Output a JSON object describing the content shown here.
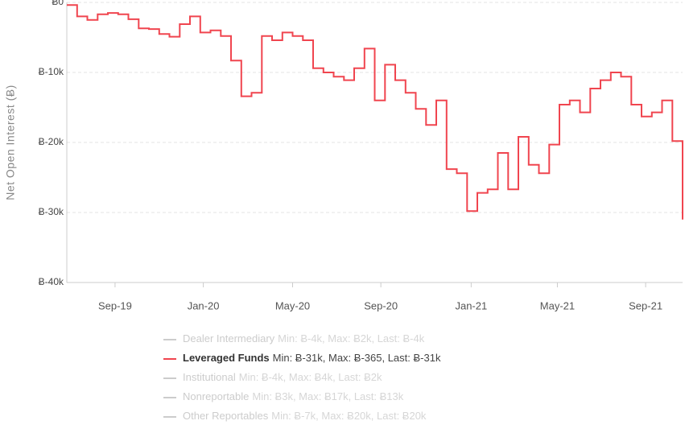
{
  "chart_data": {
    "type": "step-line",
    "y_axis_label": "Net Open Interest (Ƀ)",
    "ylim": [
      -40000,
      0
    ],
    "yticks": [
      {
        "value": 0,
        "label": "Ƀ0"
      },
      {
        "value": -10000,
        "label": "Ƀ-10k"
      },
      {
        "value": -20000,
        "label": "Ƀ-20k"
      },
      {
        "value": -30000,
        "label": "Ƀ-30k"
      },
      {
        "value": -40000,
        "label": "Ƀ-40k"
      }
    ],
    "xlim": [
      0,
      60
    ],
    "xticks": [
      {
        "value": 4.7,
        "label": "Sep-19"
      },
      {
        "value": 13.3,
        "label": "Jan-20"
      },
      {
        "value": 22.0,
        "label": "May-20"
      },
      {
        "value": 30.6,
        "label": "Sep-20"
      },
      {
        "value": 39.4,
        "label": "Jan-21"
      },
      {
        "value": 47.8,
        "label": "May-21"
      },
      {
        "value": 56.4,
        "label": "Sep-21"
      }
    ],
    "grid": true,
    "series": [
      {
        "name": "Dealer Intermediary",
        "stats": "Min: Ƀ-4k, Max: Ƀ2k, Last: Ƀ-4k",
        "color": "#cccccc",
        "hidden": true
      },
      {
        "name": "Leveraged Funds",
        "stats": "Min: Ƀ-31k, Max: Ƀ-365, Last: Ƀ-31k",
        "color": "#f0454f",
        "hidden": false,
        "values": [
          -365,
          -2000,
          -2500,
          -1700,
          -1500,
          -1700,
          -2400,
          -3700,
          -3800,
          -4500,
          -4900,
          -3100,
          -2000,
          -4300,
          -4000,
          -4800,
          -8300,
          -13400,
          -12900,
          -4800,
          -5400,
          -4300,
          -4800,
          -5400,
          -9400,
          -10000,
          -10600,
          -11100,
          -9400,
          -6600,
          -14000,
          -8900,
          -11100,
          -12900,
          -15200,
          -17500,
          -14000,
          -23800,
          -24400,
          -29800,
          -27200,
          -26700,
          -21500,
          -26700,
          -19200,
          -23200,
          -24400,
          -20300,
          -14600,
          -14000,
          -15700,
          -12300,
          -11100,
          -10000,
          -10600,
          -14600,
          -16300,
          -15700,
          -14000,
          -19800,
          -31000
        ]
      },
      {
        "name": "Institutional",
        "stats": "Min: Ƀ-4k, Max: Ƀ4k, Last: Ƀ2k",
        "color": "#cccccc",
        "hidden": true
      },
      {
        "name": "Nonreportable",
        "stats": "Min: Ƀ3k, Max: Ƀ17k, Last: Ƀ13k",
        "color": "#cccccc",
        "hidden": true
      },
      {
        "name": "Other Reportables",
        "stats": "Min: Ƀ-7k, Max: Ƀ20k, Last: Ƀ20k",
        "color": "#cccccc",
        "hidden": true
      }
    ]
  }
}
